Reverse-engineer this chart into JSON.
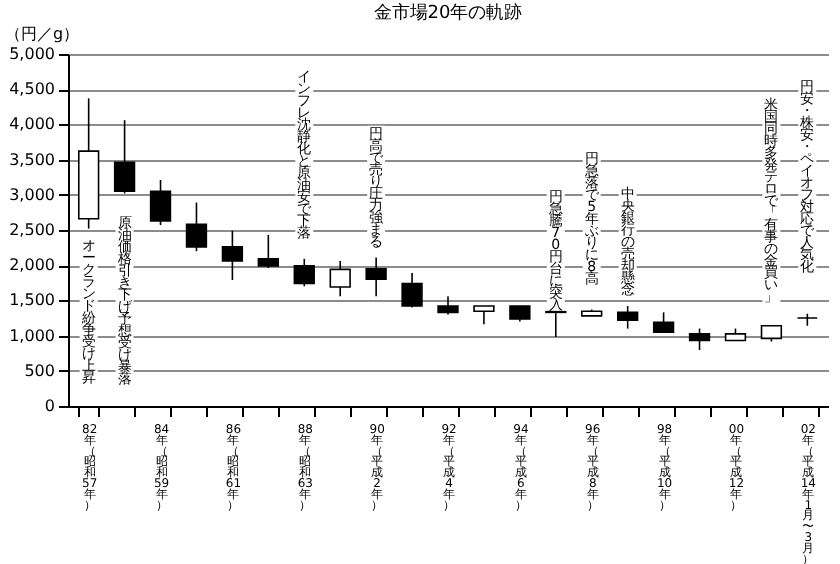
{
  "chart_data": {
    "type": "candlestick",
    "title": "金市場20年の軌跡",
    "ylabel": "（円／g）",
    "categories": [
      "82年（昭和57年）",
      null,
      "84年（昭和59年）",
      null,
      "86年（昭和61年）",
      null,
      "88年（昭和63年）",
      null,
      "90年（平成2年）",
      null,
      "92年（平成4年）",
      null,
      "94年（平成6年）",
      null,
      "96年（平成8年）",
      null,
      "98年（平成10年）",
      null,
      "00年（平成12年）",
      null,
      "02年（平成14年1月〜3月）"
    ],
    "ohlc": [
      [
        2660,
        4370,
        2520,
        3620
      ],
      [
        3460,
        4060,
        3020,
        3050
      ],
      [
        3050,
        3210,
        2570,
        2630
      ],
      [
        2580,
        2890,
        2200,
        2260
      ],
      [
        2260,
        2490,
        1790,
        2060
      ],
      [
        2090,
        2430,
        1960,
        1990
      ],
      [
        1990,
        2090,
        1700,
        1740
      ],
      [
        1690,
        2060,
        1560,
        1940
      ],
      [
        1950,
        2110,
        1560,
        1800
      ],
      [
        1740,
        1890,
        1400,
        1420
      ],
      [
        1420,
        1560,
        1300,
        1330
      ],
      [
        1345,
        1420,
        1160,
        1420
      ],
      [
        1420,
        1420,
        1200,
        1235
      ],
      [
        1330,
        1340,
        980,
        1340
      ],
      [
        1280,
        1370,
        1280,
        1345
      ],
      [
        1330,
        1420,
        1100,
        1220
      ],
      [
        1190,
        1330,
        1050,
        1050
      ],
      [
        1025,
        1100,
        795,
        930
      ],
      [
        930,
        1100,
        930,
        1025
      ],
      [
        960,
        1140,
        915,
        1140
      ],
      [
        1250,
        1310,
        1140,
        1250
      ]
    ],
    "colors": [
      "#ffffff",
      "#000000",
      "#000000",
      "#000000",
      "#000000",
      "#000000",
      "#000000",
      "#ffffff",
      "#000000",
      "#000000",
      "#000000",
      "#ffffff",
      "#000000",
      "#ffffff",
      "#ffffff",
      "#000000",
      "#000000",
      "#000000",
      "#ffffff",
      "#ffffff",
      "#000000"
    ],
    "ylim": [
      0,
      5000
    ],
    "yticks": [
      {
        "value": 0,
        "label": "0"
      },
      {
        "value": 500,
        "label": "500"
      },
      {
        "value": 1000,
        "label": "1,000"
      },
      {
        "value": 1500,
        "label": "1,500"
      },
      {
        "value": 2000,
        "label": "2,000"
      },
      {
        "value": 2500,
        "label": "2,500"
      },
      {
        "value": 3000,
        "label": "3,000"
      },
      {
        "value": 3500,
        "label": "3,500"
      },
      {
        "value": 4000,
        "label": "4,000"
      },
      {
        "value": 4500,
        "label": "4,500"
      },
      {
        "value": 5000,
        "label": "5,000"
      }
    ],
    "grid": "y",
    "annotations": [
      "オークランド紛争受け上昇",
      "原油価格引き下げ予想受け暴落",
      "インフレ沈静化と原油安で下落",
      "円高で売り圧力強まる",
      "円急騰70円台に突入",
      "円急落で5年ぶりに8高",
      "中央銀行の売却懸念",
      "米国同時多発テロで「有事の金買い」",
      "円安・株安・ペイオフ対応で人気化"
    ]
  }
}
